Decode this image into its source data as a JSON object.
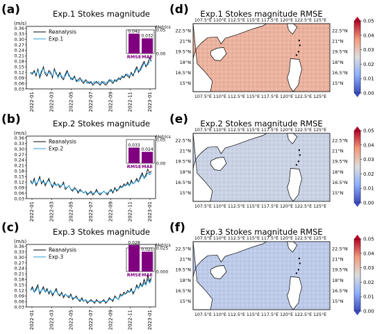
{
  "panel_letters": [
    "(a)",
    "(b)",
    "(c)",
    "(d)",
    "(e)",
    "(f)"
  ],
  "line_panels": {
    "unit": "(m/s)",
    "y_ticks": [
      "0.36",
      "0.33",
      "0.30",
      "0.27",
      "0.24",
      "0.21",
      "0.18",
      "0.15",
      "0.12",
      "0.09",
      "0.06",
      "0.03"
    ],
    "x_ticks": [
      "2022-01",
      "2022-03",
      "2022-05",
      "2022-07",
      "2022-09",
      "2022-11",
      "2023-01"
    ],
    "legend_ref": "Reanalysis",
    "metrics_label": "Metrics",
    "bar_labels": [
      "RMSE",
      "MAE"
    ]
  },
  "map_panels": {
    "lon_ticks": [
      "107.5°E",
      "110°E",
      "112.5°E",
      "115°E",
      "117.5°E",
      "120°E",
      "122.5°E",
      "125°E"
    ],
    "lat_ticks_a": [
      "22.5°N",
      "21°N",
      "19.5°N",
      "18°N",
      "16.5°N",
      "15°N"
    ],
    "colorbar_ticks": [
      "0.05",
      "0.04",
      "0.03",
      "0.02",
      "0.01",
      "0.00"
    ]
  },
  "chart_data": [
    {
      "type": "line",
      "title": "Exp.1 Stokes magnitude",
      "ylabel": "(m/s)",
      "ylim": [
        0.03,
        0.37
      ],
      "x_range": [
        "2022-01-01",
        "2023-01-01"
      ],
      "series": [
        {
          "name": "Reanalysis",
          "color": "#000000",
          "values": [
            0.12,
            0.11,
            0.13,
            0.1,
            0.14,
            0.09,
            0.12,
            0.15,
            0.11,
            0.1,
            0.13,
            0.12,
            0.09,
            0.14,
            0.11,
            0.1,
            0.12,
            0.09,
            0.08,
            0.11,
            0.13,
            0.1,
            0.09,
            0.08,
            0.1,
            0.07,
            0.08,
            0.09,
            0.07,
            0.06,
            0.08,
            0.07,
            0.06,
            0.07,
            0.05,
            0.06,
            0.07,
            0.06,
            0.05,
            0.07,
            0.06,
            0.05,
            0.06,
            0.08,
            0.07,
            0.06,
            0.08,
            0.07,
            0.09,
            0.08,
            0.1,
            0.09,
            0.11,
            0.1,
            0.09,
            0.12,
            0.1,
            0.13,
            0.15,
            0.12,
            0.14,
            0.16,
            0.18,
            0.15,
            0.17,
            0.2,
            0.18
          ]
        },
        {
          "name": "Exp.1",
          "color": "#2b9ad6",
          "values": [
            0.11,
            0.12,
            0.12,
            0.11,
            0.13,
            0.1,
            0.13,
            0.14,
            0.12,
            0.11,
            0.12,
            0.11,
            0.1,
            0.13,
            0.12,
            0.09,
            0.11,
            0.1,
            0.09,
            0.1,
            0.12,
            0.11,
            0.08,
            0.09,
            0.09,
            0.08,
            0.07,
            0.08,
            0.08,
            0.07,
            0.07,
            0.06,
            0.07,
            0.06,
            0.06,
            0.07,
            0.06,
            0.07,
            0.06,
            0.06,
            0.07,
            0.06,
            0.07,
            0.07,
            0.08,
            0.07,
            0.07,
            0.08,
            0.08,
            0.09,
            0.09,
            0.1,
            0.1,
            0.11,
            0.1,
            0.11,
            0.11,
            0.12,
            0.14,
            0.13,
            0.13,
            0.15,
            0.17,
            0.16,
            0.16,
            0.18,
            0.19
          ]
        }
      ],
      "metrics": {
        "RMSE": 0.042,
        "MAE": 0.032,
        "axis_ticks": [
          "0.05",
          "0.00"
        ],
        "ylim": [
          0,
          0.05
        ]
      }
    },
    {
      "type": "line",
      "title": "Exp.2 Stokes magnitude",
      "ylabel": "(m/s)",
      "ylim": [
        0.03,
        0.37
      ],
      "x_range": [
        "2022-01-01",
        "2023-01-01"
      ],
      "series": [
        {
          "name": "Reanalysis",
          "color": "#000000",
          "values": [
            0.13,
            0.11,
            0.14,
            0.1,
            0.12,
            0.15,
            0.11,
            0.13,
            0.1,
            0.12,
            0.14,
            0.11,
            0.09,
            0.12,
            0.1,
            0.11,
            0.09,
            0.1,
            0.12,
            0.08,
            0.09,
            0.1,
            0.08,
            0.07,
            0.09,
            0.08,
            0.06,
            0.08,
            0.07,
            0.06,
            0.07,
            0.05,
            0.06,
            0.07,
            0.05,
            0.06,
            0.08,
            0.06,
            0.05,
            0.06,
            0.07,
            0.06,
            0.05,
            0.07,
            0.08,
            0.06,
            0.09,
            0.07,
            0.08,
            0.1,
            0.09,
            0.11,
            0.1,
            0.12,
            0.1,
            0.13,
            0.11,
            0.12,
            0.14,
            0.12,
            0.15,
            0.17,
            0.14,
            0.16,
            0.19,
            0.17,
            0.18
          ]
        },
        {
          "name": "Exp.2",
          "color": "#2b9ad6",
          "values": [
            0.12,
            0.11,
            0.13,
            0.11,
            0.12,
            0.14,
            0.12,
            0.12,
            0.11,
            0.12,
            0.13,
            0.11,
            0.1,
            0.11,
            0.1,
            0.11,
            0.1,
            0.1,
            0.11,
            0.09,
            0.09,
            0.1,
            0.08,
            0.08,
            0.08,
            0.08,
            0.07,
            0.07,
            0.07,
            0.06,
            0.07,
            0.06,
            0.06,
            0.06,
            0.06,
            0.06,
            0.07,
            0.06,
            0.06,
            0.06,
            0.07,
            0.06,
            0.06,
            0.07,
            0.07,
            0.07,
            0.08,
            0.08,
            0.08,
            0.09,
            0.09,
            0.1,
            0.1,
            0.11,
            0.1,
            0.12,
            0.11,
            0.12,
            0.13,
            0.12,
            0.14,
            0.16,
            0.14,
            0.15,
            0.17,
            0.16,
            0.17
          ]
        }
      ],
      "metrics": {
        "RMSE": 0.033,
        "MAE": 0.024,
        "axis_ticks": [
          "0.05",
          "0.00"
        ],
        "ylim": [
          0,
          0.05
        ]
      }
    },
    {
      "type": "line",
      "title": "Exp.3 Stokes magnitude",
      "ylabel": "(m/s)",
      "ylim": [
        0.03,
        0.37
      ],
      "x_range": [
        "2022-01-01",
        "2023-01-01"
      ],
      "series": [
        {
          "name": "Reanalysis",
          "color": "#000000",
          "values": [
            0.12,
            0.14,
            0.11,
            0.13,
            0.15,
            0.1,
            0.12,
            0.14,
            0.11,
            0.13,
            0.1,
            0.12,
            0.09,
            0.11,
            0.13,
            0.1,
            0.09,
            0.11,
            0.08,
            0.1,
            0.09,
            0.08,
            0.1,
            0.07,
            0.08,
            0.09,
            0.07,
            0.06,
            0.08,
            0.06,
            0.07,
            0.05,
            0.06,
            0.07,
            0.06,
            0.05,
            0.07,
            0.06,
            0.05,
            0.06,
            0.07,
            0.05,
            0.06,
            0.08,
            0.07,
            0.06,
            0.09,
            0.08,
            0.07,
            0.1,
            0.09,
            0.11,
            0.1,
            0.12,
            0.11,
            0.13,
            0.1,
            0.12,
            0.15,
            0.13,
            0.16,
            0.14,
            0.18,
            0.15,
            0.2,
            0.17,
            0.19
          ]
        },
        {
          "name": "Exp.3",
          "color": "#2b9ad6",
          "values": [
            0.12,
            0.13,
            0.11,
            0.12,
            0.14,
            0.11,
            0.12,
            0.13,
            0.11,
            0.12,
            0.11,
            0.12,
            0.1,
            0.11,
            0.12,
            0.1,
            0.1,
            0.1,
            0.09,
            0.1,
            0.09,
            0.09,
            0.09,
            0.08,
            0.08,
            0.08,
            0.07,
            0.07,
            0.07,
            0.06,
            0.07,
            0.06,
            0.06,
            0.06,
            0.06,
            0.06,
            0.06,
            0.06,
            0.06,
            0.06,
            0.06,
            0.06,
            0.06,
            0.07,
            0.07,
            0.07,
            0.08,
            0.08,
            0.07,
            0.09,
            0.09,
            0.1,
            0.1,
            0.11,
            0.11,
            0.12,
            0.11,
            0.12,
            0.14,
            0.13,
            0.15,
            0.14,
            0.16,
            0.15,
            0.18,
            0.16,
            0.18
          ]
        }
      ],
      "metrics": {
        "RMSE": 0.028,
        "MAE": 0.021,
        "axis_ticks": [
          "0.025",
          "0.000"
        ],
        "ylim": [
          0,
          0.025
        ]
      }
    },
    {
      "type": "heatmap",
      "title": "Exp.1 Stokes magnitude RMSE",
      "xlim": [
        106,
        126.5
      ],
      "ylim": [
        13.8,
        23.5
      ],
      "colorbar": {
        "min": 0.0,
        "max": 0.05,
        "cmap": "coolwarm"
      },
      "field_level": 0.033
    },
    {
      "type": "heatmap",
      "title": "Exp.2 Stokes magnitude RMSE",
      "xlim": [
        106,
        126.5
      ],
      "ylim": [
        13.8,
        23.5
      ],
      "colorbar": {
        "min": 0.0,
        "max": 0.05,
        "cmap": "coolwarm"
      },
      "field_level": 0.022
    },
    {
      "type": "heatmap",
      "title": "Exp.3 Stokes magnitude RMSE",
      "xlim": [
        106,
        126.5
      ],
      "ylim": [
        13.8,
        23.5
      ],
      "colorbar": {
        "min": 0.0,
        "max": 0.05,
        "cmap": "coolwarm"
      },
      "field_level": 0.02
    }
  ]
}
